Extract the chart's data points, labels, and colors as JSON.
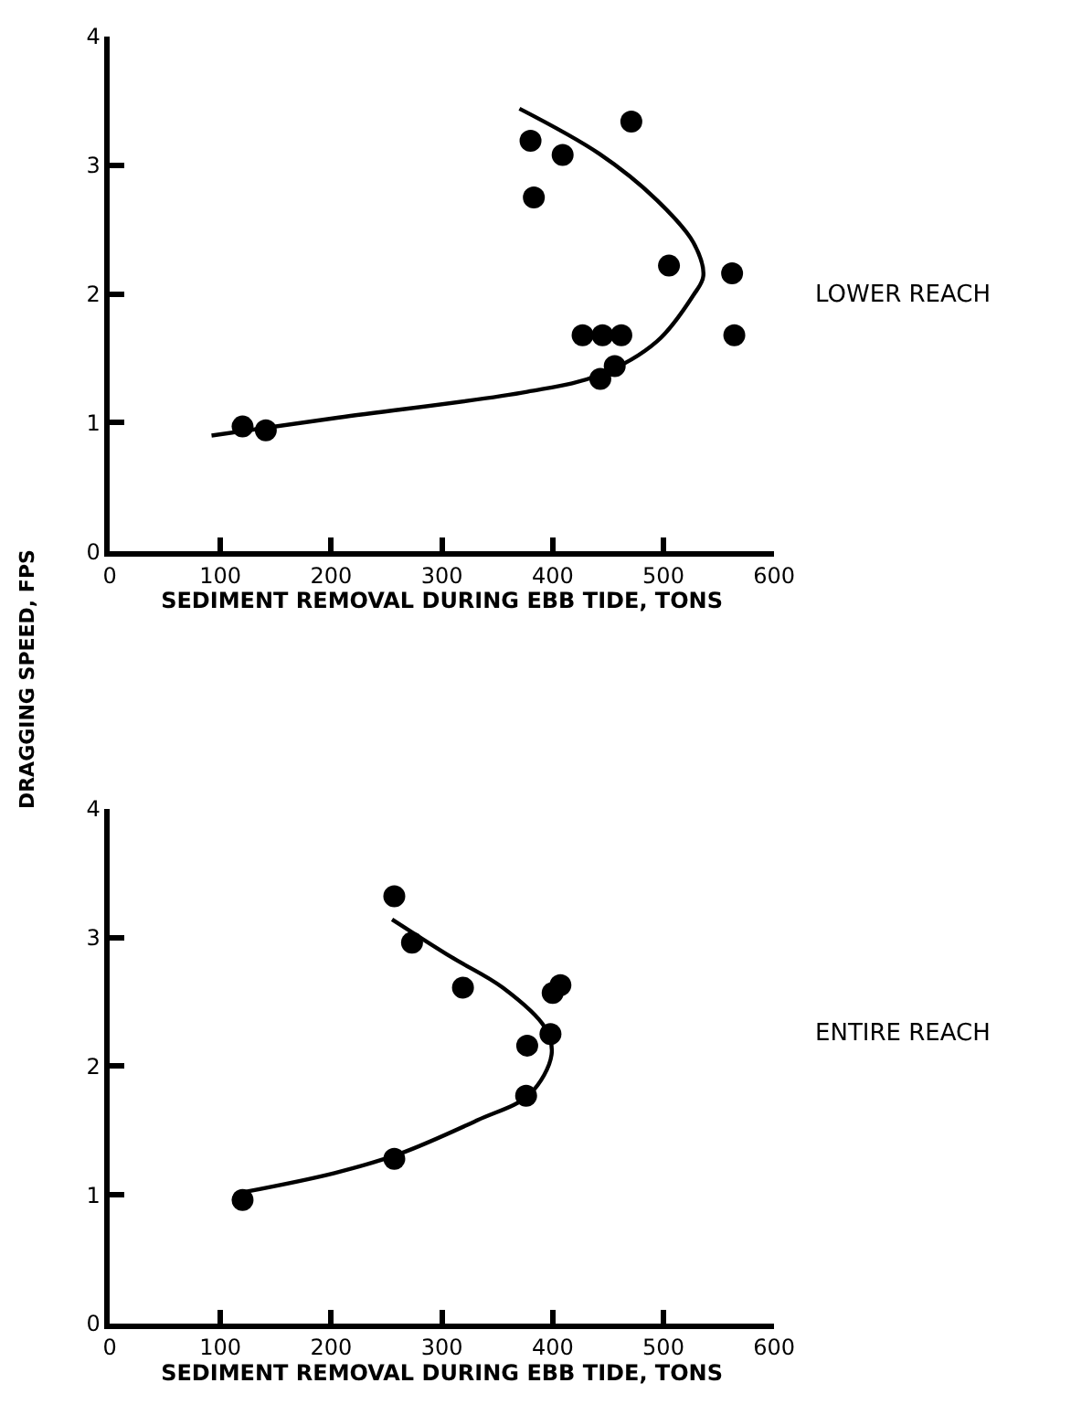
{
  "chart_data": [
    {
      "type": "scatter",
      "ylabel": "DRAGGING SPEED, FPS",
      "xlabel": "SEDIMENT REMOVAL DURING EBB TIDE, TONS",
      "annotations": [
        "LOWER REACH"
      ],
      "xlim": [
        0,
        600
      ],
      "ylim": [
        0,
        4
      ],
      "xticks": [
        0,
        100,
        200,
        300,
        400,
        500,
        600
      ],
      "yticks": [
        0,
        1,
        2,
        3,
        4
      ],
      "marker": "circle",
      "series": [
        {
          "color": "#000000",
          "x": [
            120,
            141,
            380,
            409,
            471,
            383,
            505,
            562,
            564,
            427,
            445,
            462,
            456,
            443
          ],
          "values": [
            0.97,
            0.94,
            3.19,
            3.08,
            3.34,
            2.75,
            2.22,
            2.16,
            1.68,
            1.68,
            1.68,
            1.68,
            1.44,
            1.34
          ]
        },
        {
          "type": "line",
          "color": "#000000",
          "marker": "none",
          "line_style": "solid",
          "x": [
            92,
            207,
            377,
            442,
            494,
            527,
            536,
            527,
            494,
            442,
            370
          ],
          "values": [
            0.9,
            1.04,
            1.24,
            1.37,
            1.63,
            1.99,
            2.14,
            2.4,
            2.73,
            3.09,
            3.44
          ]
        }
      ]
    },
    {
      "type": "scatter",
      "xlabel": "SEDIMENT REMOVAL DURING EBB TIDE, TONS",
      "annotations": [
        "ENTIRE REACH"
      ],
      "xlim": [
        0,
        600
      ],
      "ylim": [
        0,
        4
      ],
      "xticks": [
        0,
        100,
        200,
        300,
        400,
        500,
        600
      ],
      "yticks": [
        0,
        1,
        2,
        3,
        4
      ],
      "marker": "circle",
      "series": [
        {
          "color": "#000000",
          "x": [
            257,
            273,
            319,
            400,
            407,
            398,
            377,
            376,
            257,
            120
          ],
          "values": [
            3.32,
            2.96,
            2.61,
            2.57,
            2.63,
            2.25,
            2.16,
            1.77,
            1.28,
            0.96
          ]
        },
        {
          "type": "line",
          "color": "#000000",
          "marker": "none",
          "line_style": "solid",
          "x": [
            120,
            203,
            262,
            332,
            379,
            399,
            393,
            355,
            308,
            255
          ],
          "values": [
            1.02,
            1.17,
            1.32,
            1.58,
            1.78,
            2.09,
            2.3,
            2.61,
            2.85,
            3.14
          ]
        }
      ]
    }
  ]
}
